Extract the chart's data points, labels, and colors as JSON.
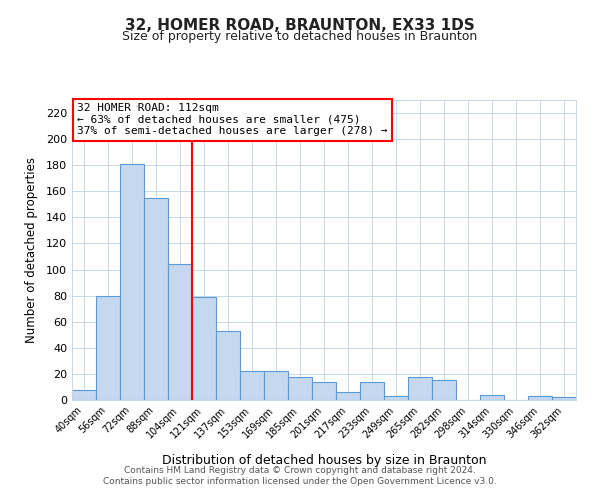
{
  "title": "32, HOMER ROAD, BRAUNTON, EX33 1DS",
  "subtitle": "Size of property relative to detached houses in Braunton",
  "xlabel": "Distribution of detached houses by size in Braunton",
  "ylabel": "Number of detached properties",
  "bar_labels": [
    "40sqm",
    "56sqm",
    "72sqm",
    "88sqm",
    "104sqm",
    "121sqm",
    "137sqm",
    "153sqm",
    "169sqm",
    "185sqm",
    "201sqm",
    "217sqm",
    "233sqm",
    "249sqm",
    "265sqm",
    "282sqm",
    "298sqm",
    "314sqm",
    "330sqm",
    "346sqm",
    "362sqm"
  ],
  "bar_values": [
    8,
    80,
    181,
    155,
    104,
    79,
    53,
    22,
    22,
    18,
    14,
    6,
    14,
    3,
    18,
    15,
    0,
    4,
    0,
    3,
    2
  ],
  "bar_color": "#c5d8f0",
  "bar_edge_color": "#5b9bd5",
  "ylim": [
    0,
    230
  ],
  "yticks": [
    0,
    20,
    40,
    60,
    80,
    100,
    120,
    140,
    160,
    180,
    200,
    220
  ],
  "red_line_x": 4.5,
  "annotation_title": "32 HOMER ROAD: 112sqm",
  "annotation_line1": "← 63% of detached houses are smaller (475)",
  "annotation_line2": "37% of semi-detached houses are larger (278) →",
  "footer1": "Contains HM Land Registry data © Crown copyright and database right 2024.",
  "footer2": "Contains public sector information licensed under the Open Government Licence v3.0.",
  "background_color": "#ffffff",
  "grid_color": "#c8d8e8"
}
